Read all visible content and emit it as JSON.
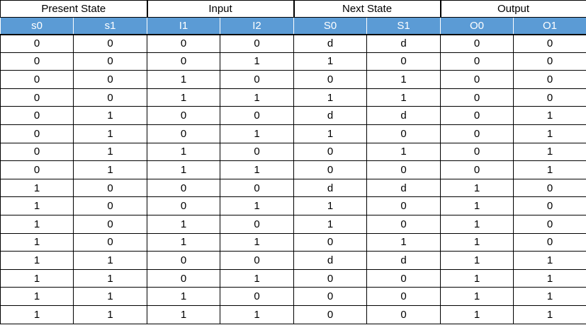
{
  "groups": [
    {
      "label": "Present State",
      "span": 2
    },
    {
      "label": "Input",
      "span": 2
    },
    {
      "label": "Next State",
      "span": 2
    },
    {
      "label": "Output",
      "span": 2
    }
  ],
  "columns": [
    "s0",
    "s1",
    "I1",
    "I2",
    "S0",
    "S1",
    "O0",
    "O1"
  ],
  "rows": [
    [
      "0",
      "0",
      "0",
      "0",
      "d",
      "d",
      "0",
      "0"
    ],
    [
      "0",
      "0",
      "0",
      "1",
      "1",
      "0",
      "0",
      "0"
    ],
    [
      "0",
      "0",
      "1",
      "0",
      "0",
      "1",
      "0",
      "0"
    ],
    [
      "0",
      "0",
      "1",
      "1",
      "1",
      "1",
      "0",
      "0"
    ],
    [
      "0",
      "1",
      "0",
      "0",
      "d",
      "d",
      "0",
      "1"
    ],
    [
      "0",
      "1",
      "0",
      "1",
      "1",
      "0",
      "0",
      "1"
    ],
    [
      "0",
      "1",
      "1",
      "0",
      "0",
      "1",
      "0",
      "1"
    ],
    [
      "0",
      "1",
      "1",
      "1",
      "0",
      "0",
      "0",
      "1"
    ],
    [
      "1",
      "0",
      "0",
      "0",
      "d",
      "d",
      "1",
      "0"
    ],
    [
      "1",
      "0",
      "0",
      "1",
      "1",
      "0",
      "1",
      "0"
    ],
    [
      "1",
      "0",
      "1",
      "0",
      "1",
      "0",
      "1",
      "0"
    ],
    [
      "1",
      "0",
      "1",
      "1",
      "0",
      "1",
      "1",
      "0"
    ],
    [
      "1",
      "1",
      "0",
      "0",
      "d",
      "d",
      "1",
      "1"
    ],
    [
      "1",
      "1",
      "0",
      "1",
      "0",
      "0",
      "1",
      "1"
    ],
    [
      "1",
      "1",
      "1",
      "0",
      "0",
      "0",
      "1",
      "1"
    ],
    [
      "1",
      "1",
      "1",
      "1",
      "0",
      "0",
      "1",
      "1"
    ]
  ],
  "colors": {
    "header_fill": "#5b9bd5",
    "header_text": "#ffffff",
    "border": "#000000"
  }
}
